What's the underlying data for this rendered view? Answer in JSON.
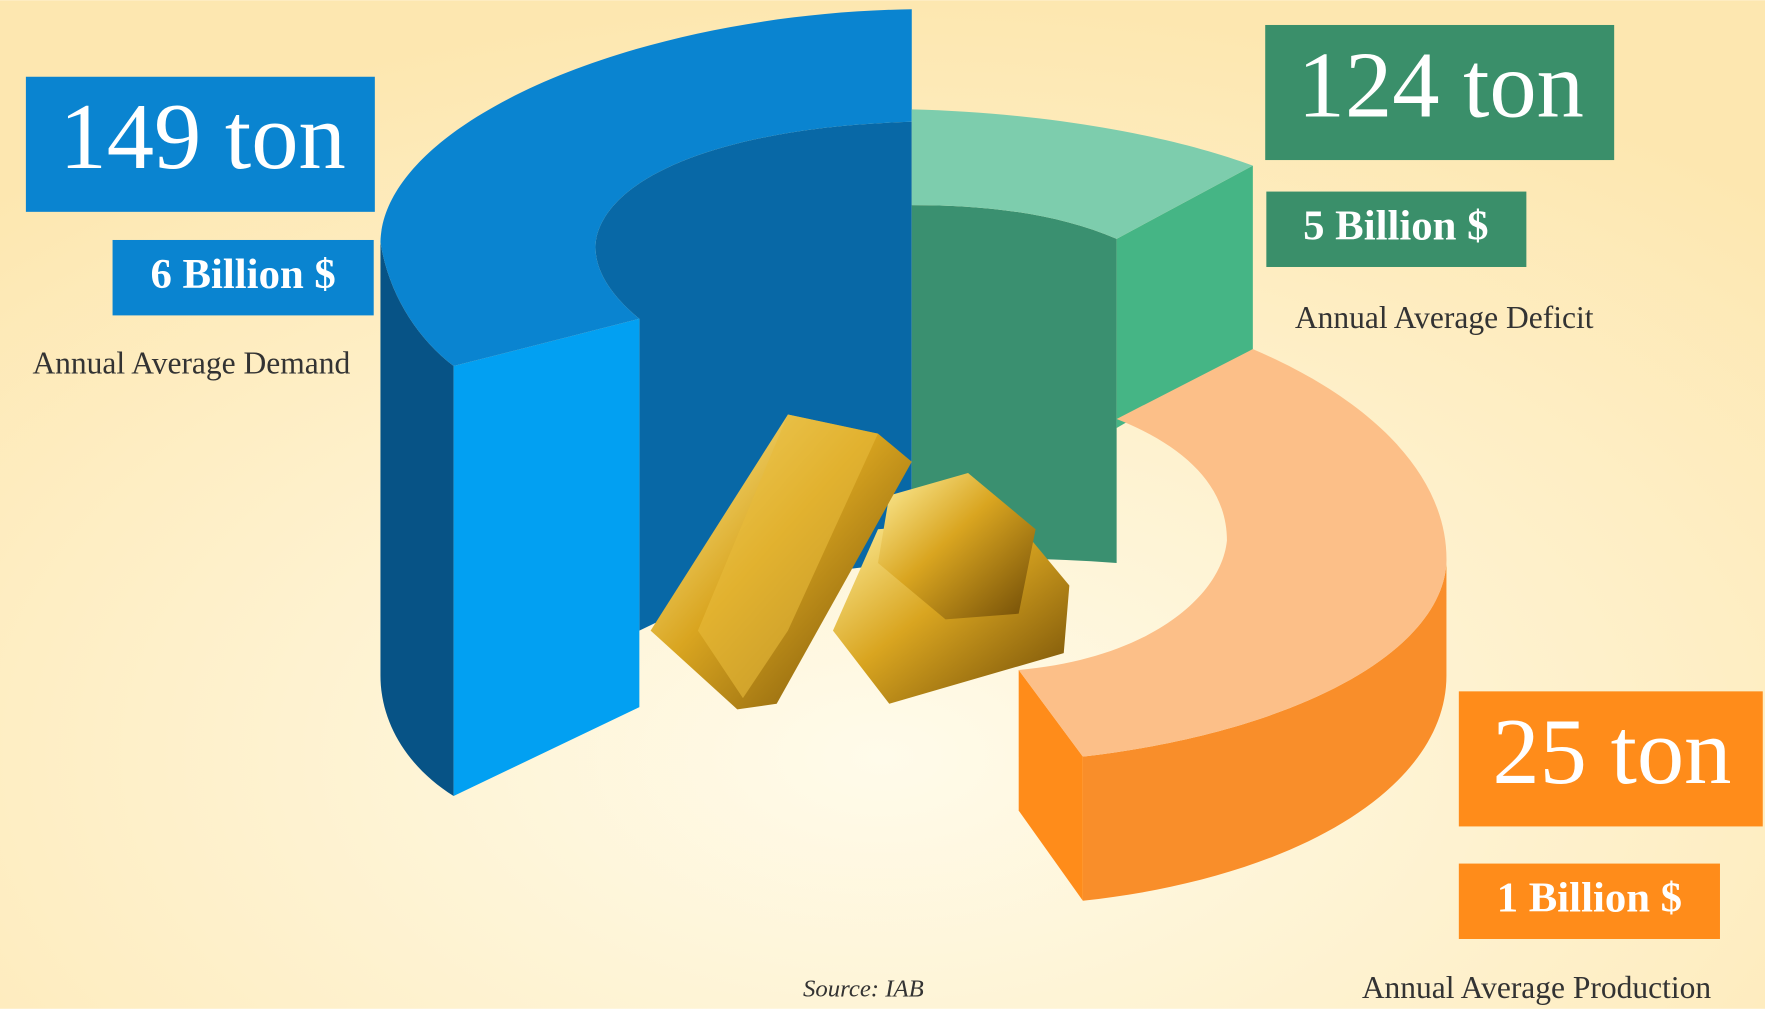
{
  "items": [
    {
      "amount": "149 ton",
      "value": "6 Billion $",
      "label": "Annual Average Demand"
    },
    {
      "amount": "124 ton",
      "value": "5 Billion $",
      "label": "Annual Average Deficit"
    },
    {
      "amount": "25 ton",
      "value": "1 Billion $",
      "label": "Annual Average Production"
    }
  ],
  "source": "Source: IAB"
}
